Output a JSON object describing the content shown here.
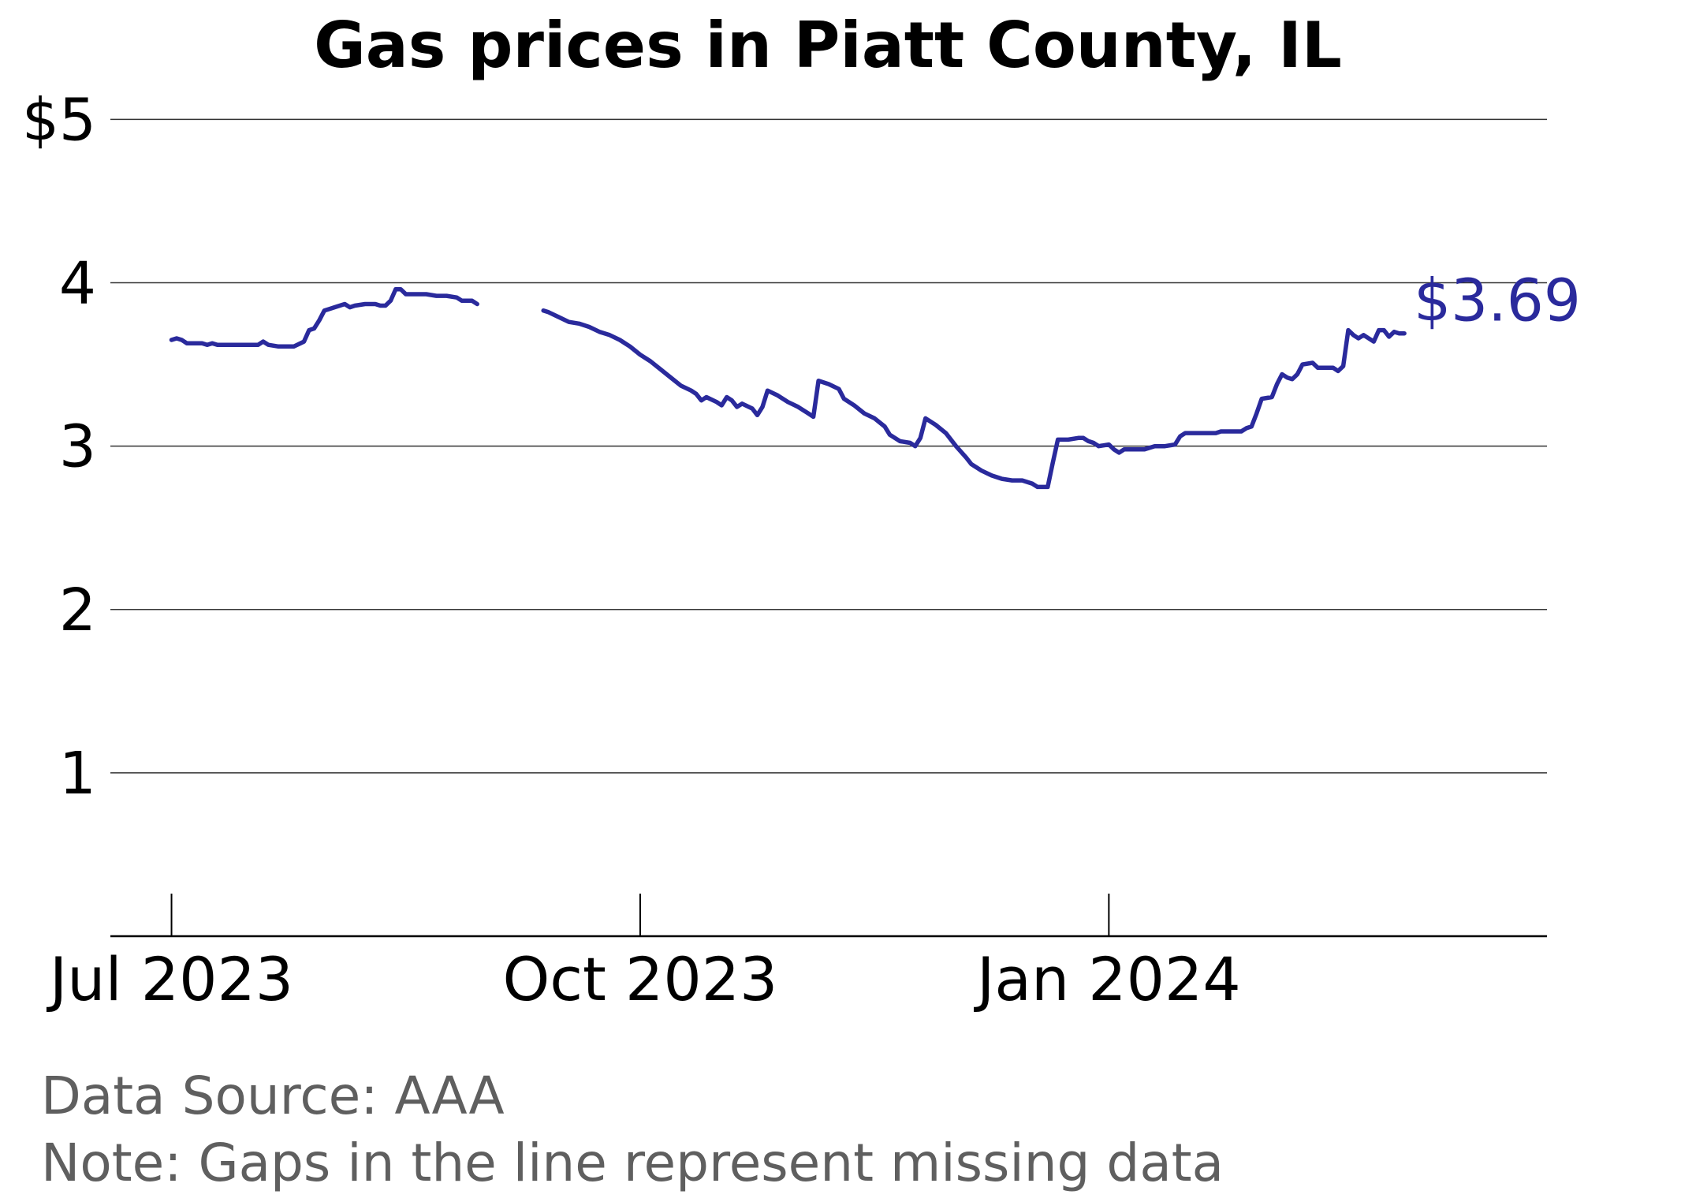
{
  "chart_data": {
    "type": "line",
    "title": "Gas prices in Piatt County, IL",
    "xlabel": "",
    "ylabel": "",
    "ytick_labels": [
      "$5",
      "4",
      "3",
      "2",
      "1"
    ],
    "ytick_values": [
      5,
      4,
      3,
      2,
      1
    ],
    "xtick_labels": [
      "Jul 2023",
      "Oct 2023",
      "Jan 2024"
    ],
    "xtick_dates": [
      "2023-07-01",
      "2023-10-01",
      "2024-01-01"
    ],
    "ylim": [
      0,
      5.2
    ],
    "xlim": [
      "2023-06-19",
      "2024-03-27"
    ],
    "grid": true,
    "line_color": "#2a2a9c",
    "end_label": "$3.69",
    "source_note": "Data Source: AAA",
    "gap_note": "Note: Gaps in the line represent missing data",
    "series": [
      {
        "segments": [
          [
            [
              "2023-07-01",
              3.65
            ],
            [
              "2023-07-02",
              3.66
            ],
            [
              "2023-07-03",
              3.65
            ],
            [
              "2023-07-04",
              3.63
            ],
            [
              "2023-07-05",
              3.63
            ],
            [
              "2023-07-07",
              3.63
            ],
            [
              "2023-07-08",
              3.62
            ],
            [
              "2023-07-09",
              3.63
            ],
            [
              "2023-07-10",
              3.62
            ],
            [
              "2023-07-12",
              3.62
            ],
            [
              "2023-07-14",
              3.62
            ],
            [
              "2023-07-16",
              3.62
            ],
            [
              "2023-07-18",
              3.62
            ],
            [
              "2023-07-19",
              3.64
            ],
            [
              "2023-07-20",
              3.62
            ],
            [
              "2023-07-22",
              3.61
            ],
            [
              "2023-07-24",
              3.61
            ],
            [
              "2023-07-25",
              3.61
            ],
            [
              "2023-07-27",
              3.64
            ],
            [
              "2023-07-28",
              3.71
            ],
            [
              "2023-07-29",
              3.72
            ],
            [
              "2023-07-30",
              3.77
            ],
            [
              "2023-07-31",
              3.83
            ],
            [
              "2023-08-01",
              3.84
            ],
            [
              "2023-08-02",
              3.85
            ],
            [
              "2023-08-04",
              3.87
            ],
            [
              "2023-08-05",
              3.85
            ],
            [
              "2023-08-06",
              3.86
            ],
            [
              "2023-08-08",
              3.87
            ],
            [
              "2023-08-10",
              3.87
            ],
            [
              "2023-08-11",
              3.86
            ],
            [
              "2023-08-12",
              3.86
            ],
            [
              "2023-08-13",
              3.89
            ],
            [
              "2023-08-14",
              3.96
            ],
            [
              "2023-08-15",
              3.96
            ],
            [
              "2023-08-16",
              3.93
            ],
            [
              "2023-08-18",
              3.93
            ],
            [
              "2023-08-20",
              3.93
            ],
            [
              "2023-08-22",
              3.92
            ],
            [
              "2023-08-24",
              3.92
            ],
            [
              "2023-08-26",
              3.91
            ],
            [
              "2023-08-27",
              3.89
            ],
            [
              "2023-08-29",
              3.89
            ],
            [
              "2023-08-30",
              3.87
            ]
          ],
          [
            [
              "2023-09-12",
              3.83
            ],
            [
              "2023-09-13",
              3.82
            ],
            [
              "2023-09-15",
              3.79
            ],
            [
              "2023-09-17",
              3.76
            ],
            [
              "2023-09-19",
              3.75
            ],
            [
              "2023-09-21",
              3.73
            ],
            [
              "2023-09-23",
              3.7
            ],
            [
              "2023-09-25",
              3.68
            ],
            [
              "2023-09-27",
              3.65
            ],
            [
              "2023-09-29",
              3.61
            ],
            [
              "2023-10-01",
              3.56
            ],
            [
              "2023-10-03",
              3.52
            ],
            [
              "2023-10-05",
              3.47
            ],
            [
              "2023-10-07",
              3.42
            ],
            [
              "2023-10-09",
              3.37
            ],
            [
              "2023-10-11",
              3.34
            ],
            [
              "2023-10-12",
              3.32
            ],
            [
              "2023-10-13",
              3.28
            ],
            [
              "2023-10-14",
              3.3
            ],
            [
              "2023-10-16",
              3.27
            ],
            [
              "2023-10-17",
              3.25
            ],
            [
              "2023-10-18",
              3.3
            ],
            [
              "2023-10-19",
              3.28
            ],
            [
              "2023-10-20",
              3.24
            ],
            [
              "2023-10-21",
              3.26
            ],
            [
              "2023-10-23",
              3.23
            ],
            [
              "2023-10-24",
              3.19
            ],
            [
              "2023-10-25",
              3.24
            ],
            [
              "2023-10-26",
              3.34
            ],
            [
              "2023-10-28",
              3.31
            ],
            [
              "2023-10-30",
              3.27
            ],
            [
              "2023-11-01",
              3.24
            ],
            [
              "2023-11-03",
              3.2
            ],
            [
              "2023-11-04",
              3.18
            ],
            [
              "2023-11-05",
              3.4
            ],
            [
              "2023-11-07",
              3.38
            ],
            [
              "2023-11-09",
              3.35
            ],
            [
              "2023-11-10",
              3.29
            ],
            [
              "2023-11-12",
              3.25
            ],
            [
              "2023-11-14",
              3.2
            ],
            [
              "2023-11-16",
              3.17
            ],
            [
              "2023-11-18",
              3.12
            ],
            [
              "2023-11-19",
              3.07
            ],
            [
              "2023-11-21",
              3.03
            ],
            [
              "2023-11-23",
              3.02
            ],
            [
              "2023-11-24",
              3.0
            ],
            [
              "2023-11-25",
              3.05
            ],
            [
              "2023-11-26",
              3.17
            ],
            [
              "2023-11-28",
              3.13
            ],
            [
              "2023-11-30",
              3.08
            ],
            [
              "2023-12-02",
              3.0
            ],
            [
              "2023-12-04",
              2.93
            ],
            [
              "2023-12-05",
              2.89
            ],
            [
              "2023-12-07",
              2.85
            ],
            [
              "2023-12-09",
              2.82
            ],
            [
              "2023-12-11",
              2.8
            ],
            [
              "2023-12-13",
              2.79
            ],
            [
              "2023-12-15",
              2.79
            ],
            [
              "2023-12-17",
              2.77
            ],
            [
              "2023-12-18",
              2.75
            ],
            [
              "2023-12-20",
              2.75
            ],
            [
              "2023-12-21",
              2.9
            ],
            [
              "2023-12-22",
              3.04
            ],
            [
              "2023-12-24",
              3.04
            ],
            [
              "2023-12-26",
              3.05
            ],
            [
              "2023-12-27",
              3.05
            ],
            [
              "2023-12-28",
              3.03
            ],
            [
              "2023-12-29",
              3.02
            ],
            [
              "2023-12-30",
              3.0
            ],
            [
              "2024-01-01",
              3.01
            ],
            [
              "2024-01-02",
              2.98
            ],
            [
              "2024-01-03",
              2.96
            ],
            [
              "2024-01-04",
              2.98
            ],
            [
              "2024-01-05",
              2.98
            ],
            [
              "2024-01-06",
              2.98
            ],
            [
              "2024-01-08",
              2.98
            ],
            [
              "2024-01-10",
              3.0
            ],
            [
              "2024-01-12",
              3.0
            ],
            [
              "2024-01-14",
              3.01
            ],
            [
              "2024-01-15",
              3.06
            ],
            [
              "2024-01-16",
              3.08
            ],
            [
              "2024-01-18",
              3.08
            ],
            [
              "2024-01-20",
              3.08
            ],
            [
              "2024-01-22",
              3.08
            ],
            [
              "2024-01-23",
              3.09
            ],
            [
              "2024-01-24",
              3.09
            ],
            [
              "2024-01-27",
              3.09
            ],
            [
              "2024-01-28",
              3.11
            ],
            [
              "2024-01-29",
              3.12
            ],
            [
              "2024-01-30",
              3.2
            ],
            [
              "2024-01-31",
              3.29
            ],
            [
              "2024-02-02",
              3.3
            ],
            [
              "2024-02-03",
              3.38
            ],
            [
              "2024-02-04",
              3.44
            ],
            [
              "2024-02-05",
              3.42
            ],
            [
              "2024-02-06",
              3.41
            ],
            [
              "2024-02-07",
              3.44
            ],
            [
              "2024-02-08",
              3.5
            ],
            [
              "2024-02-10",
              3.51
            ],
            [
              "2024-02-11",
              3.48
            ],
            [
              "2024-02-13",
              3.48
            ],
            [
              "2024-02-14",
              3.48
            ],
            [
              "2024-02-15",
              3.46
            ],
            [
              "2024-02-16",
              3.49
            ],
            [
              "2024-02-17",
              3.71
            ],
            [
              "2024-02-18",
              3.68
            ],
            [
              "2024-02-19",
              3.66
            ],
            [
              "2024-02-20",
              3.68
            ],
            [
              "2024-02-21",
              3.66
            ],
            [
              "2024-02-22",
              3.64
            ],
            [
              "2024-02-23",
              3.71
            ],
            [
              "2024-02-24",
              3.71
            ],
            [
              "2024-02-25",
              3.67
            ],
            [
              "2024-02-26",
              3.7
            ],
            [
              "2024-02-27",
              3.69
            ],
            [
              "2024-02-28",
              3.69
            ]
          ]
        ]
      }
    ]
  }
}
